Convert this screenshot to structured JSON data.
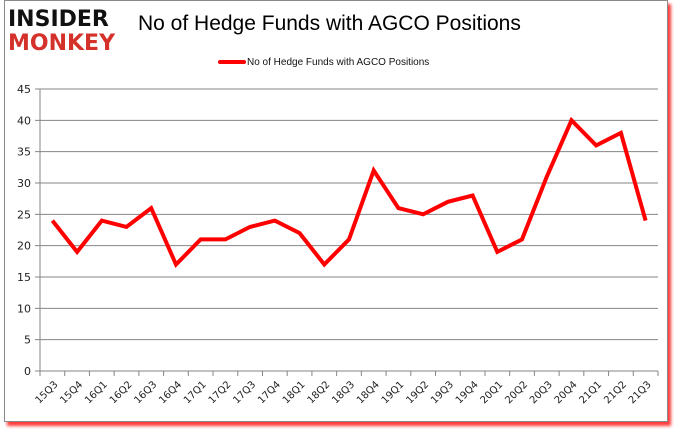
{
  "header": {
    "logo_line1": "INSIDER",
    "logo_line2": "MONKEY",
    "title": "No of Hedge Funds with AGCO Positions"
  },
  "legend": {
    "label": "No of Hedge Funds with AGCO Positions",
    "color": "#ff0000"
  },
  "colors": {
    "line": "#ff0000",
    "grid": "#868686",
    "logo_red": "#d4312a",
    "shadow": "#ff3b3b"
  },
  "chart_data": {
    "type": "line",
    "title": "No of Hedge Funds with AGCO Positions",
    "xlabel": "",
    "ylabel": "",
    "ylim": [
      0,
      45
    ],
    "yticks": [
      0,
      5,
      10,
      15,
      20,
      25,
      30,
      35,
      40,
      45
    ],
    "grid": true,
    "legend_position": "top",
    "categories": [
      "15Q3",
      "15Q4",
      "16Q1",
      "16Q2",
      "16Q3",
      "16Q4",
      "17Q1",
      "17Q2",
      "17Q3",
      "17Q4",
      "18Q1",
      "18Q2",
      "18Q3",
      "18Q4",
      "19Q1",
      "19Q2",
      "19Q3",
      "19Q4",
      "20Q1",
      "20Q2",
      "20Q3",
      "20Q4",
      "21Q1",
      "21Q2",
      "21Q3"
    ],
    "series": [
      {
        "name": "No of Hedge Funds with AGCO Positions",
        "values": [
          24,
          19,
          24,
          23,
          26,
          17,
          21,
          21,
          23,
          24,
          22,
          17,
          21,
          32,
          26,
          25,
          27,
          28,
          19,
          21,
          31,
          40,
          36,
          38,
          24
        ]
      }
    ]
  }
}
